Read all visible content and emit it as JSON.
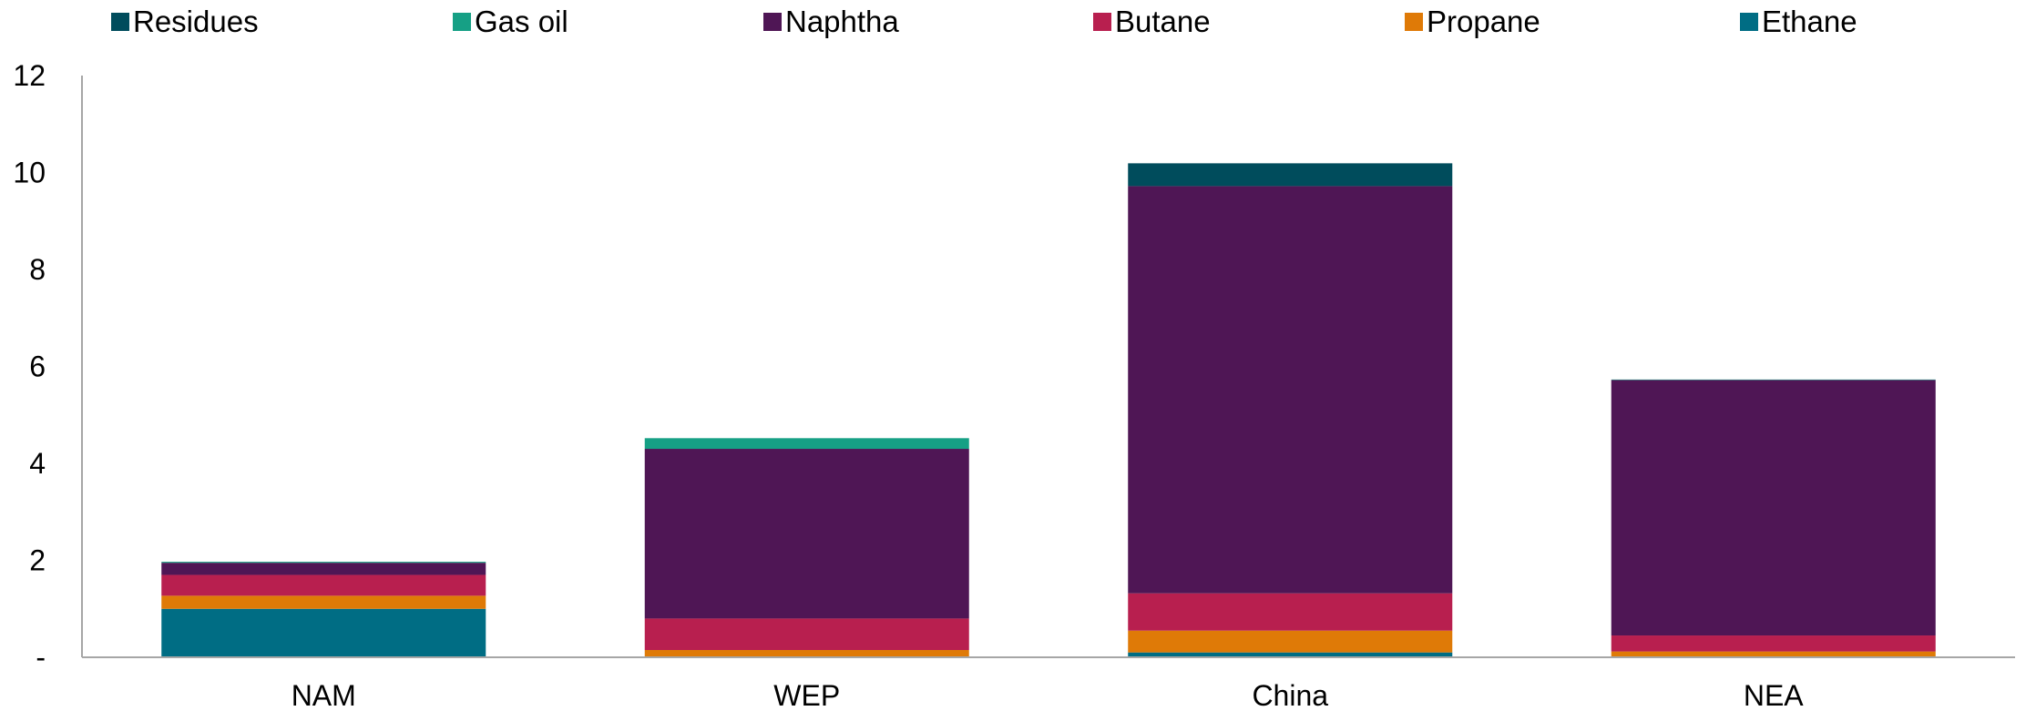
{
  "chart_data": {
    "type": "bar",
    "stacked": true,
    "categories": [
      "NAM",
      "WEP",
      "China",
      "NEA"
    ],
    "ylim": [
      0,
      12
    ],
    "yticks": [
      0,
      2,
      4,
      6,
      8,
      10,
      12
    ],
    "ytick_labels": [
      "-",
      "2",
      "4",
      "6",
      "8",
      "10",
      "12"
    ],
    "grid": false,
    "legend_position": "top",
    "series": [
      {
        "name": "Ethane",
        "color": "#006d84",
        "values": [
          1.0,
          0.0,
          0.1,
          0.0
        ]
      },
      {
        "name": "Propane",
        "color": "#df7a07",
        "values": [
          0.27,
          0.15,
          0.45,
          0.12
        ]
      },
      {
        "name": "Butane",
        "color": "#b81f4f",
        "values": [
          0.43,
          0.65,
          0.77,
          0.33
        ]
      },
      {
        "name": "Naphtha",
        "color": "#4f1655",
        "values": [
          0.25,
          3.5,
          8.4,
          5.27
        ]
      },
      {
        "name": "Gas oil",
        "color": "#16a085",
        "values": [
          0.02,
          0.22,
          0.0,
          0.01
        ]
      },
      {
        "name": "Residues",
        "color": "#004c5c",
        "values": [
          0.0,
          0.0,
          0.47,
          0.0
        ]
      }
    ],
    "legend_order": [
      "Residues",
      "Gas oil",
      "Naphtha",
      "Butane",
      "Propane",
      "Ethane"
    ],
    "axis_color": "#a6a6a6"
  }
}
